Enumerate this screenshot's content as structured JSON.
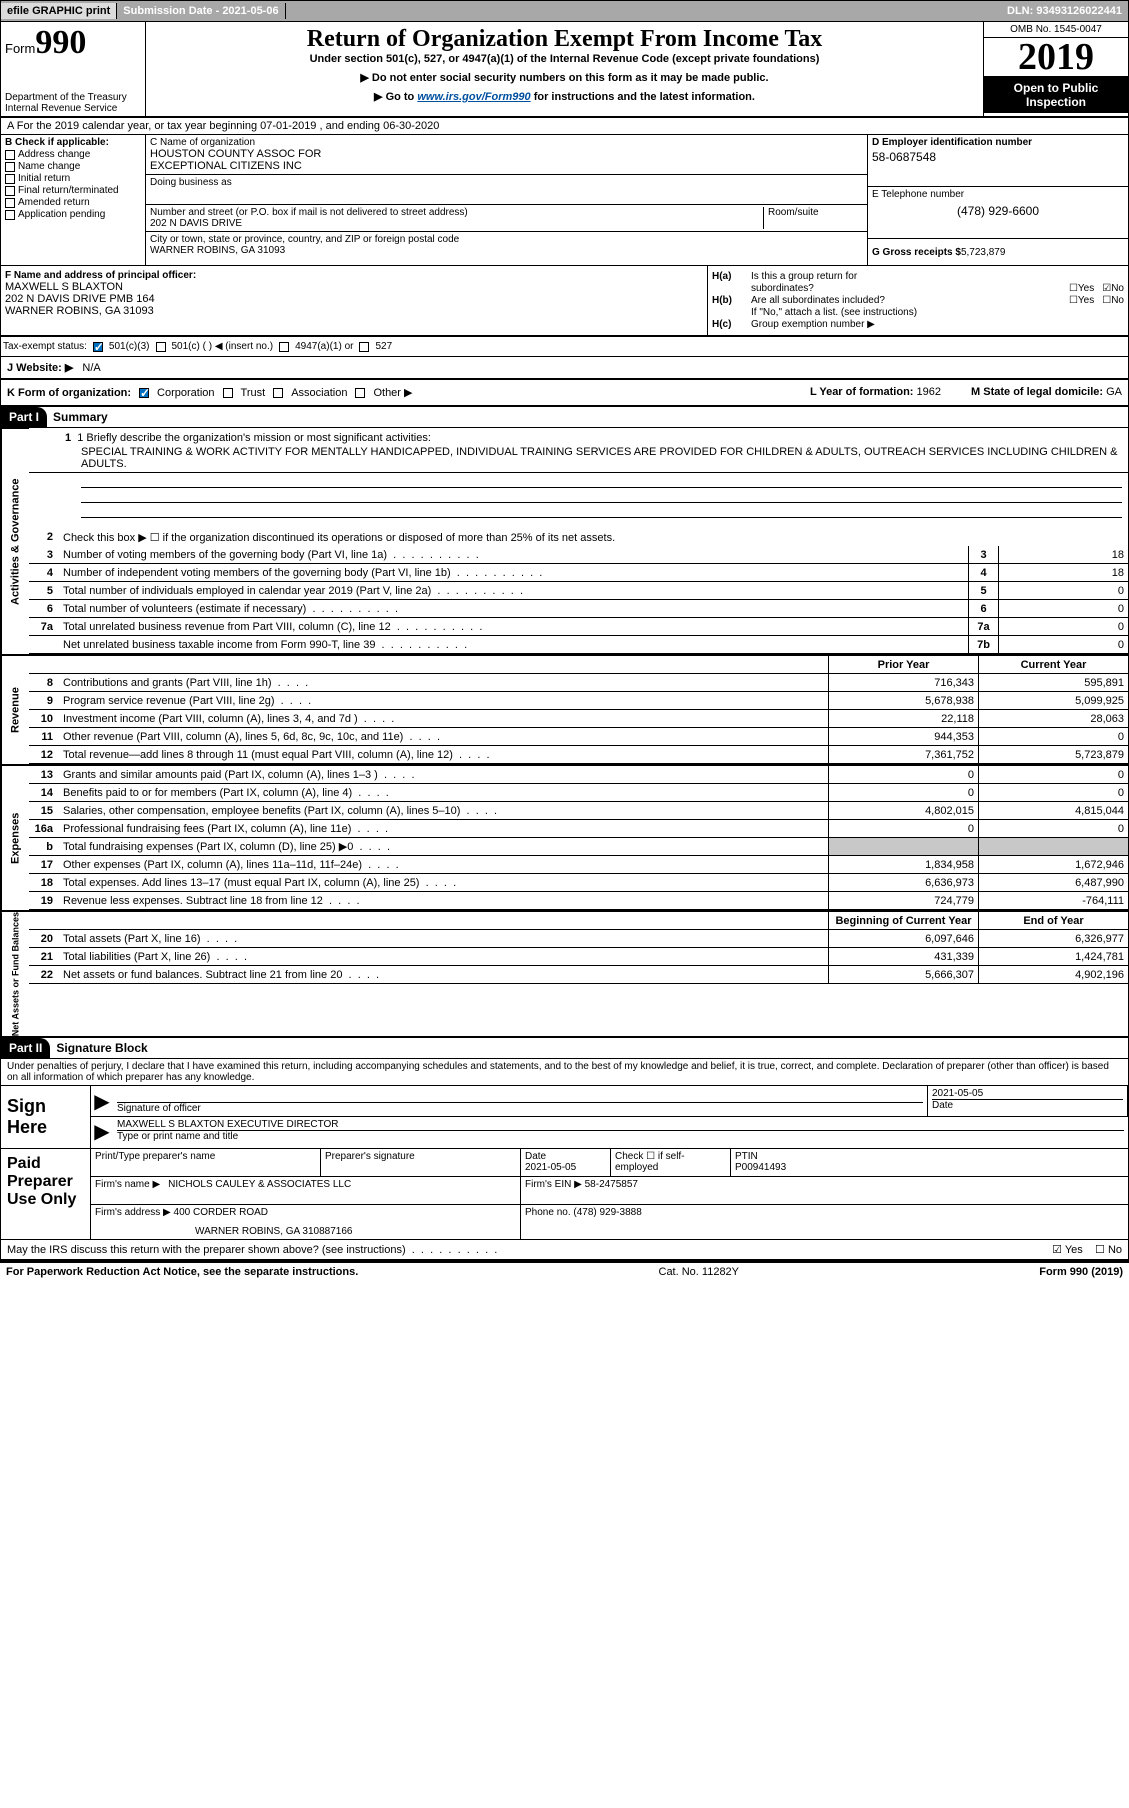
{
  "top_bar": {
    "efile": "efile GRAPHIC print",
    "sub_date": "Submission Date - 2021-05-06",
    "dln": "DLN: 93493126022441"
  },
  "header": {
    "form_prefix": "Form",
    "form_no": "990",
    "dept": "Department of the Treasury",
    "irs": "Internal Revenue Service",
    "title": "Return of Organization Exempt From Income Tax",
    "sub1": "Under section 501(c), 527, or 4947(a)(1) of the Internal Revenue Code (except private foundations)",
    "sub2": "▶ Do not enter social security numbers on this form as it may be made public.",
    "go_prefix": "▶ Go to ",
    "go_link": "www.irs.gov/Form990",
    "go_suffix": " for instructions and the latest information.",
    "omb": "OMB No. 1545-0047",
    "year": "2019",
    "inspect1": "Open to Public",
    "inspect2": "Inspection"
  },
  "period": "A For the 2019 calendar year, or tax year beginning 07-01-2019    , and ending 06-30-2020",
  "section_b": {
    "label": "B Check if applicable:",
    "addr_change": "Address change",
    "name_change": "Name change",
    "initial": "Initial return",
    "final": "Final return/terminated",
    "amended": "Amended return",
    "app_pending": "Application pending"
  },
  "section_c": {
    "name_label": "C Name of organization",
    "org1": "HOUSTON COUNTY ASSOC FOR",
    "org2": "EXCEPTIONAL CITIZENS INC",
    "dba_label": "Doing business as",
    "street_label": "Number and street (or P.O. box if mail is not delivered to street address)",
    "room_label": "Room/suite",
    "street": "202 N DAVIS DRIVE",
    "city_label": "City or town, state or province, country, and ZIP or foreign postal code",
    "city": "WARNER ROBINS, GA  31093"
  },
  "section_d": {
    "ein_label": "D Employer identification number",
    "ein": "58-0687548",
    "tel_label": "E Telephone number",
    "tel": "(478) 929-6600",
    "gross_label": "G Gross receipts $ ",
    "gross": "5,723,879"
  },
  "section_f": {
    "label": "F  Name and address of principal officer:",
    "name": "MAXWELL S BLAXTON",
    "addr1": "202 N DAVIS DRIVE PMB 164",
    "addr2": "WARNER ROBINS, GA  31093",
    "tax_label": "Tax-exempt status:",
    "opt1": "501(c)(3)",
    "opt2": "501(c) (  ) ◀ (insert no.)",
    "opt3": "4947(a)(1) or",
    "opt4": "527"
  },
  "section_h": {
    "ha_label": "H(a)",
    "ha_txt": "Is this a group return for",
    "ha_txt2": "subordinates?",
    "hb_label": "H(b)",
    "hb_txt": "Are all subordinates included?",
    "hb_note": "If \"No,\" attach a list. (see instructions)",
    "hc_label": "H(c)",
    "hc_txt": "Group exemption number ▶",
    "yes": "Yes",
    "no": "No"
  },
  "website": {
    "label": "J  Website: ▶",
    "value": "N/A"
  },
  "k_row": {
    "label": "K Form of organization:",
    "corp": "Corporation",
    "trust": "Trust",
    "assoc": "Association",
    "other": "Other ▶",
    "l_label": "L Year of formation: ",
    "l_val": "1962",
    "m_label": "M State of legal domicile: ",
    "m_val": "GA"
  },
  "part1": {
    "hdr": "Part I",
    "title": "Summary",
    "line1_label": "1  Briefly describe the organization's mission or most significant activities:",
    "mission": "SPECIAL TRAINING & WORK ACTIVITY FOR MENTALLY HANDICAPPED, INDIVIDUAL TRAINING SERVICES ARE PROVIDED FOR CHILDREN & ADULTS, OUTREACH SERVICES INCLUDING CHILDREN & ADULTS.",
    "line2": "Check this box ▶ ☐  if the organization discontinued its operations or disposed of more than 25% of its net assets.",
    "side_ag": "Activities & Governance",
    "side_rev": "Revenue",
    "side_exp": "Expenses",
    "side_net": "Net Assets or Fund Balances",
    "lines_ag": [
      {
        "no": "3",
        "txt": "Number of voting members of the governing body (Part VI, line 1a)",
        "box": "3",
        "val": "18"
      },
      {
        "no": "4",
        "txt": "Number of independent voting members of the governing body (Part VI, line 1b)",
        "box": "4",
        "val": "18"
      },
      {
        "no": "5",
        "txt": "Total number of individuals employed in calendar year 2019 (Part V, line 2a)",
        "box": "5",
        "val": "0"
      },
      {
        "no": "6",
        "txt": "Total number of volunteers (estimate if necessary)",
        "box": "6",
        "val": "0"
      },
      {
        "no": "7a",
        "txt": "Total unrelated business revenue from Part VIII, column (C), line 12",
        "box": "7a",
        "val": "0"
      },
      {
        "no": "",
        "txt": "Net unrelated business taxable income from Form 990-T, line 39",
        "box": "7b",
        "val": "0"
      }
    ],
    "col_prior": "Prior Year",
    "col_current": "Current Year",
    "col_begin": "Beginning of Current Year",
    "col_end": "End of Year",
    "lines_rev": [
      {
        "no": "8",
        "txt": "Contributions and grants (Part VIII, line 1h)",
        "py": "716,343",
        "cy": "595,891"
      },
      {
        "no": "9",
        "txt": "Program service revenue (Part VIII, line 2g)",
        "py": "5,678,938",
        "cy": "5,099,925"
      },
      {
        "no": "10",
        "txt": "Investment income (Part VIII, column (A), lines 3, 4, and 7d )",
        "py": "22,118",
        "cy": "28,063"
      },
      {
        "no": "11",
        "txt": "Other revenue (Part VIII, column (A), lines 5, 6d, 8c, 9c, 10c, and 11e)",
        "py": "944,353",
        "cy": "0"
      },
      {
        "no": "12",
        "txt": "Total revenue—add lines 8 through 11 (must equal Part VIII, column (A), line 12)",
        "py": "7,361,752",
        "cy": "5,723,879"
      }
    ],
    "lines_exp": [
      {
        "no": "13",
        "txt": "Grants and similar amounts paid (Part IX, column (A), lines 1–3 )",
        "py": "0",
        "cy": "0"
      },
      {
        "no": "14",
        "txt": "Benefits paid to or for members (Part IX, column (A), line 4)",
        "py": "0",
        "cy": "0"
      },
      {
        "no": "15",
        "txt": "Salaries, other compensation, employee benefits (Part IX, column (A), lines 5–10)",
        "py": "4,802,015",
        "cy": "4,815,044"
      },
      {
        "no": "16a",
        "txt": "Professional fundraising fees (Part IX, column (A), line 11e)",
        "py": "0",
        "cy": "0"
      },
      {
        "no": "b",
        "txt": "Total fundraising expenses (Part IX, column (D), line 25) ▶0",
        "py": "",
        "cy": "",
        "grey": true
      },
      {
        "no": "17",
        "txt": "Other expenses (Part IX, column (A), lines 11a–11d, 11f–24e)",
        "py": "1,834,958",
        "cy": "1,672,946"
      },
      {
        "no": "18",
        "txt": "Total expenses. Add lines 13–17 (must equal Part IX, column (A), line 25)",
        "py": "6,636,973",
        "cy": "6,487,990"
      },
      {
        "no": "19",
        "txt": "Revenue less expenses. Subtract line 18 from line 12",
        "py": "724,779",
        "cy": "-764,111"
      }
    ],
    "lines_net": [
      {
        "no": "20",
        "txt": "Total assets (Part X, line 16)",
        "py": "6,097,646",
        "cy": "6,326,977"
      },
      {
        "no": "21",
        "txt": "Total liabilities (Part X, line 26)",
        "py": "431,339",
        "cy": "1,424,781"
      },
      {
        "no": "22",
        "txt": "Net assets or fund balances. Subtract line 21 from line 20",
        "py": "5,666,307",
        "cy": "4,902,196"
      }
    ]
  },
  "part2": {
    "hdr": "Part II",
    "title": "Signature Block",
    "penalty": "Under penalties of perjury, I declare that I have examined this return, including accompanying schedules and statements, and to the best of my knowledge and belief, it is true, correct, and complete. Declaration of preparer (other than officer) is based on all information of which preparer has any knowledge.",
    "sign_here": "Sign Here",
    "sig_officer": "Signature of officer",
    "sig_date": "2021-05-05",
    "date_lbl": "Date",
    "officer": "MAXWELL S BLAXTON  EXECUTIVE DIRECTOR",
    "type_name": "Type or print name and title",
    "paid": "Paid Preparer Use Only",
    "prep_name_lbl": "Print/Type preparer's name",
    "prep_sig_lbl": "Preparer's signature",
    "prep_date": "2021-05-05",
    "check_self": "Check ☐ if self-employed",
    "ptin_lbl": "PTIN",
    "ptin": "P00941493",
    "firm_name_lbl": "Firm's name    ▶",
    "firm_name": "NICHOLS CAULEY & ASSOCIATES LLC",
    "firm_ein_lbl": "Firm's EIN ▶ ",
    "firm_ein": "58-2475857",
    "firm_addr_lbl": "Firm's address ▶",
    "firm_addr1": "400 CORDER ROAD",
    "firm_addr2": "WARNER ROBINS, GA  310887166",
    "phone_lbl": "Phone no. ",
    "phone": "(478) 929-3888",
    "discuss": "May the IRS discuss this return with the preparer shown above? (see instructions)"
  },
  "footer": {
    "left": "For Paperwork Reduction Act Notice, see the separate instructions.",
    "mid": "Cat. No. 11282Y",
    "right": "Form 990 (2019)"
  }
}
